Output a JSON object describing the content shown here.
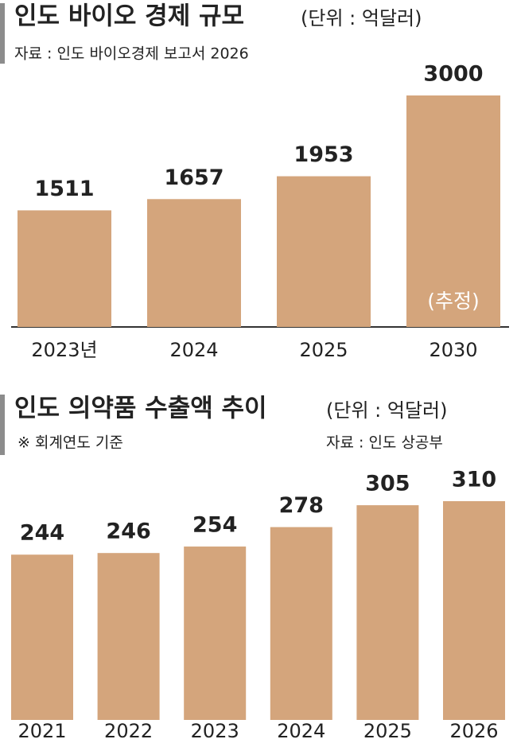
{
  "chart_data": [
    {
      "type": "bar",
      "title": "인도 바이오 경제 규모",
      "unit": "(단위 : 억달러)",
      "source": "자료 : 인도 바이오경제 보고서 2026",
      "categories": [
        "2023년",
        "2024",
        "2025",
        "2030"
      ],
      "values": [
        1511,
        1657,
        1953,
        3000
      ],
      "color": "#d4a57c",
      "annotation": "(추정)",
      "ylim": [
        0,
        3000
      ]
    },
    {
      "type": "bar",
      "title": "인도 의약품 수출액 추이",
      "unit": "(단위 : 억달러)",
      "note": "※ 회계연도 기준",
      "source": "자료 : 인도 상공부",
      "categories": [
        "2021",
        "2022",
        "2023",
        "2024",
        "2025",
        "2026"
      ],
      "values": [
        244,
        246,
        254,
        278,
        305,
        310
      ],
      "color": "#d4a57c",
      "ylim": [
        40,
        310
      ]
    }
  ]
}
